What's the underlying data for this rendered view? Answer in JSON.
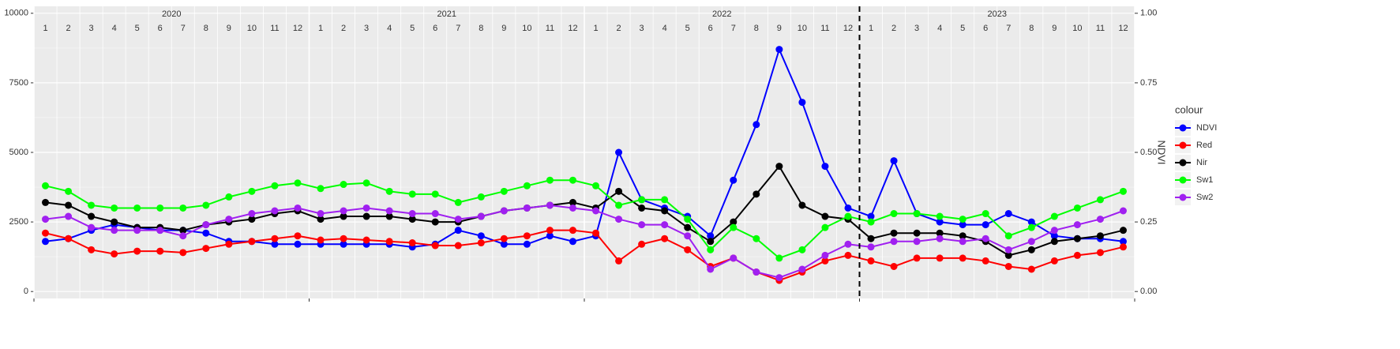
{
  "chart_data": {
    "type": "line",
    "years": [
      "2020",
      "2021",
      "2022",
      "2023"
    ],
    "months": [
      1,
      2,
      3,
      4,
      5,
      6,
      7,
      8,
      9,
      10,
      11,
      12,
      1,
      2,
      3,
      4,
      5,
      6,
      7,
      8,
      9,
      10,
      11,
      12,
      1,
      2,
      3,
      4,
      5,
      6,
      7,
      8,
      9,
      10,
      11,
      12,
      1,
      2,
      3,
      4,
      5,
      6,
      7,
      8,
      9,
      10,
      11,
      12
    ],
    "x": [
      "2020-01",
      "2020-02",
      "2020-03",
      "2020-04",
      "2020-05",
      "2020-06",
      "2020-07",
      "2020-08",
      "2020-09",
      "2020-10",
      "2020-11",
      "2020-12",
      "2021-01",
      "2021-02",
      "2021-03",
      "2021-04",
      "2021-05",
      "2021-06",
      "2021-07",
      "2021-08",
      "2021-09",
      "2021-10",
      "2021-11",
      "2021-12",
      "2022-01",
      "2022-02",
      "2022-03",
      "2022-04",
      "2022-05",
      "2022-06",
      "2022-07",
      "2022-08",
      "2022-09",
      "2022-10",
      "2022-11",
      "2022-12",
      "2023-01",
      "2023-02",
      "2023-03",
      "2023-04",
      "2023-05",
      "2023-06",
      "2023-07",
      "2023-08",
      "2023-09",
      "2023-10",
      "2023-11",
      "2023-12"
    ],
    "vline_x": "2023-01",
    "ylim": [
      -250,
      10250
    ],
    "yticks": [
      0,
      2500,
      5000,
      7500,
      10000
    ],
    "y2label": "NDVI",
    "y2lim": [
      -0.025,
      1.025
    ],
    "y2ticks": [
      {
        "value": 0,
        "label": "0.00"
      },
      {
        "value": 0.25,
        "label": "0.25"
      },
      {
        "value": 0.5,
        "label": "0.50"
      },
      {
        "value": 0.75,
        "label": "0.75"
      },
      {
        "value": 1,
        "label": "1.00"
      }
    ],
    "grid": true,
    "legend_title": "colour",
    "legend_position": "right",
    "series": [
      {
        "name": "NDVI",
        "color": "#0000ff",
        "axis": "y2",
        "values": [
          0.18,
          0.19,
          0.22,
          0.24,
          0.23,
          0.22,
          0.22,
          0.21,
          0.18,
          0.18,
          0.17,
          0.17,
          0.17,
          0.17,
          0.17,
          0.17,
          0.16,
          0.17,
          0.22,
          0.2,
          0.17,
          0.17,
          0.2,
          0.18,
          0.2,
          0.5,
          0.33,
          0.3,
          0.27,
          0.2,
          0.4,
          0.6,
          0.87,
          0.68,
          0.45,
          0.3,
          0.27,
          0.47,
          0.28,
          0.25,
          0.24,
          0.24,
          0.28,
          0.25,
          0.2,
          0.19,
          0.19,
          0.18
        ]
      },
      {
        "name": "Red",
        "color": "#ff0000",
        "values": [
          2100,
          1900,
          1500,
          1350,
          1450,
          1450,
          1400,
          1550,
          1700,
          1800,
          1900,
          2000,
          1850,
          1900,
          1850,
          1800,
          1750,
          1650,
          1650,
          1750,
          1900,
          2000,
          2200,
          2200,
          2100,
          1100,
          1700,
          1900,
          1500,
          900,
          1200,
          700,
          400,
          700,
          1100,
          1300,
          1100,
          900,
          1200,
          1200,
          1200,
          1100,
          900,
          800,
          1100,
          1300,
          1400,
          1600
        ]
      },
      {
        "name": "Nir",
        "color": "#000000",
        "values": [
          3200,
          3100,
          2700,
          2500,
          2300,
          2300,
          2200,
          2400,
          2500,
          2600,
          2800,
          2900,
          2600,
          2700,
          2700,
          2700,
          2600,
          2500,
          2500,
          2700,
          2900,
          3000,
          3100,
          3200,
          3000,
          3600,
          3000,
          2900,
          2300,
          1800,
          2500,
          3500,
          4500,
          3100,
          2700,
          2600,
          1900,
          2100,
          2100,
          2100,
          2000,
          1800,
          1300,
          1500,
          1800,
          1900,
          2000,
          2200
        ]
      },
      {
        "name": "Sw1",
        "color": "#00ff00",
        "values": [
          3800,
          3600,
          3100,
          3000,
          3000,
          3000,
          3000,
          3100,
          3400,
          3600,
          3800,
          3900,
          3700,
          3850,
          3900,
          3600,
          3500,
          3500,
          3200,
          3400,
          3600,
          3800,
          4000,
          4000,
          3800,
          3100,
          3300,
          3300,
          2600,
          1500,
          2300,
          1900,
          1200,
          1500,
          2300,
          2700,
          2500,
          2800,
          2800,
          2700,
          2600,
          2800,
          2000,
          2300,
          2700,
          3000,
          3300,
          3600
        ]
      },
      {
        "name": "Sw2",
        "color": "#a020f0",
        "values": [
          2600,
          2700,
          2300,
          2200,
          2200,
          2200,
          2000,
          2400,
          2600,
          2800,
          2900,
          3000,
          2800,
          2900,
          3000,
          2900,
          2800,
          2800,
          2600,
          2700,
          2900,
          3000,
          3100,
          3000,
          2900,
          2600,
          2400,
          2400,
          2000,
          800,
          1200,
          700,
          500,
          800,
          1300,
          1700,
          1600,
          1800,
          1800,
          1900,
          1800,
          1900,
          1500,
          1800,
          2200,
          2400,
          2600,
          2900
        ]
      }
    ]
  }
}
